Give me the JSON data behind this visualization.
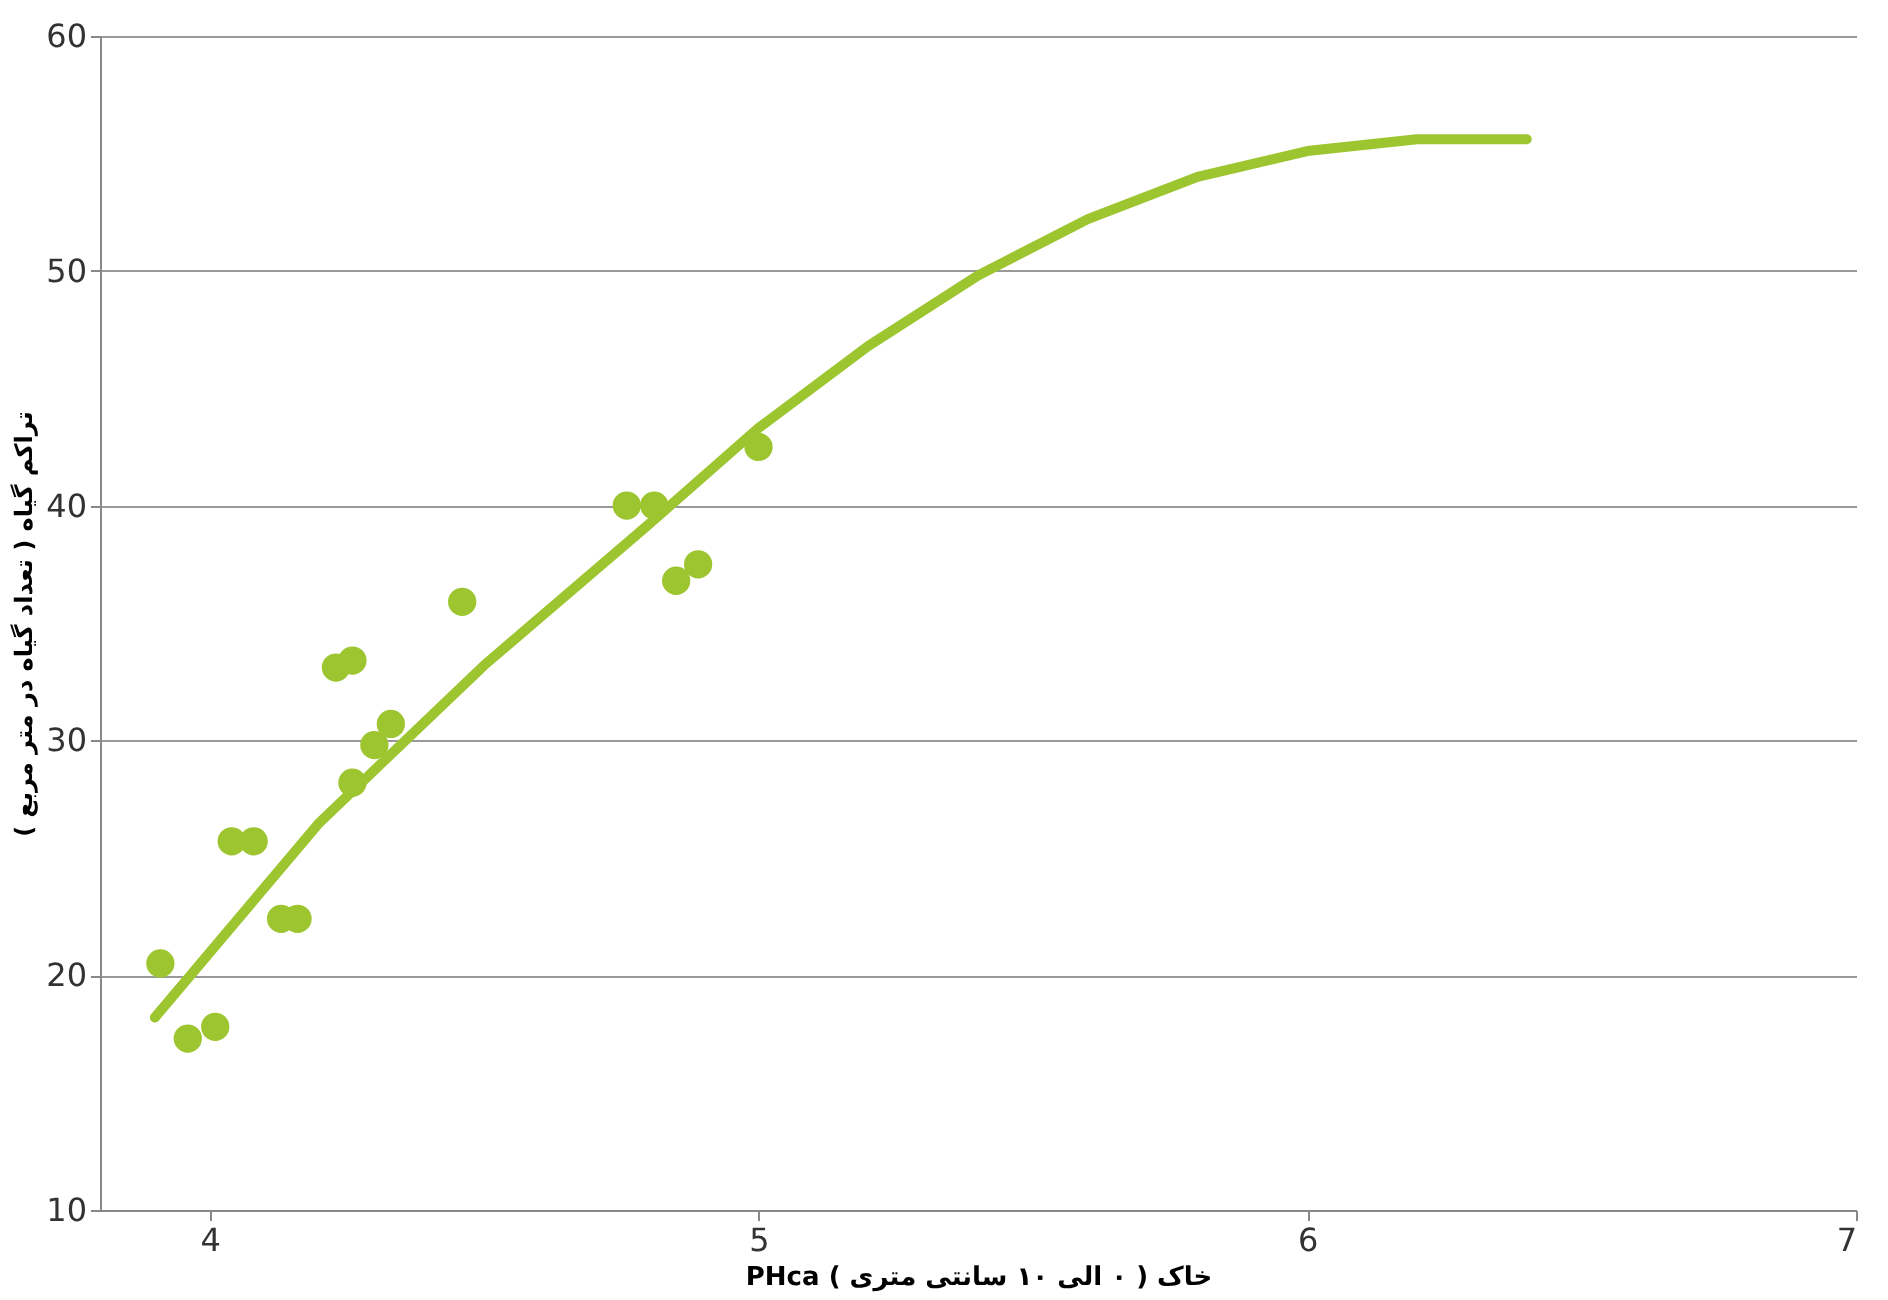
{
  "chart_data": {
    "type": "scatter",
    "xlabel": "PHca خاک ( ۰ الی ۱۰ سانتی متری )",
    "ylabel": "تراکم گیاه ( تعداد گیاه در متر مربع )",
    "xlim": [
      3.8,
      7
    ],
    "xticks": [
      4,
      5,
      6,
      7
    ],
    "ylim": [
      10,
      60
    ],
    "yticks": [
      10,
      20,
      30,
      40,
      50,
      60
    ],
    "grid": "y",
    "series": [
      {
        "type": "scatter",
        "marker": "circle",
        "color": "#9dc52f",
        "x": [
          3.91,
          3.96,
          4.01,
          4.04,
          4.08,
          4.13,
          4.16,
          4.23,
          4.26,
          4.26,
          4.3,
          4.33,
          4.46,
          4.76,
          4.81,
          4.85,
          4.89,
          5.0
        ],
        "values": [
          20.5,
          17.3,
          17.8,
          25.7,
          25.7,
          22.4,
          22.4,
          33.1,
          33.4,
          28.2,
          29.8,
          30.7,
          35.9,
          40.0,
          40.0,
          36.8,
          37.5,
          42.5
        ]
      },
      {
        "type": "line",
        "marker": "none",
        "line_style": "solid",
        "color": "#9dc52f",
        "x": [
          3.9,
          4.2,
          4.5,
          4.8,
          5.0,
          5.2,
          5.4,
          5.6,
          5.8,
          6.0,
          6.2,
          6.4
        ],
        "values": [
          18.2,
          26.5,
          33.2,
          39.2,
          43.3,
          46.8,
          49.8,
          52.2,
          54.0,
          55.1,
          55.6,
          55.6
        ]
      }
    ]
  }
}
